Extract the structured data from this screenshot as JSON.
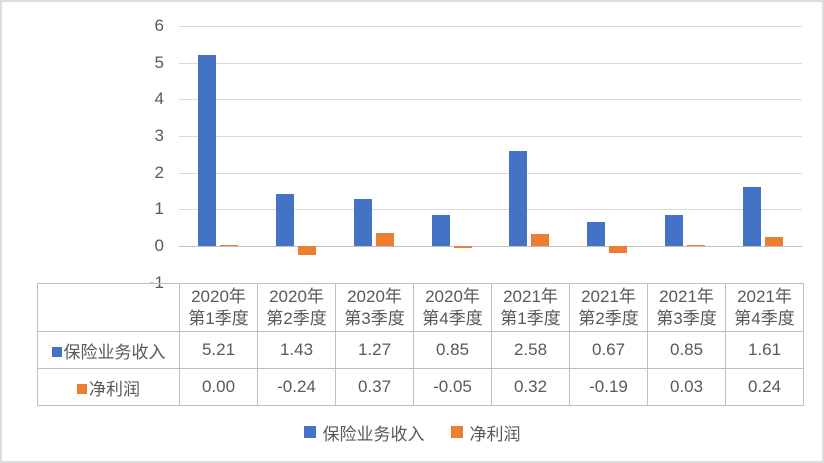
{
  "chart_data": {
    "type": "bar",
    "title": "",
    "xlabel": "",
    "ylabel": "",
    "categories": [
      {
        "line1": "2020年",
        "line2": "第1季度"
      },
      {
        "line1": "2020年",
        "line2": "第2季度"
      },
      {
        "line1": "2020年",
        "line2": "第3季度"
      },
      {
        "line1": "2020年",
        "line2": "第4季度"
      },
      {
        "line1": "2021年",
        "line2": "第1季度"
      },
      {
        "line1": "2021年",
        "line2": "第2季度"
      },
      {
        "line1": "2021年",
        "line2": "第3季度"
      },
      {
        "line1": "2021年",
        "line2": "第4季度"
      }
    ],
    "series": [
      {
        "name": "保险业务收入",
        "color": "#4472C4",
        "values": [
          5.21,
          1.43,
          1.27,
          0.85,
          2.58,
          0.67,
          0.85,
          1.61
        ]
      },
      {
        "name": "净利润",
        "color": "#ED7D31",
        "values": [
          0.0,
          -0.24,
          0.37,
          -0.05,
          0.32,
          -0.19,
          0.03,
          0.24
        ]
      }
    ],
    "yticks": [
      6,
      5,
      4,
      3,
      2,
      1,
      0,
      -1
    ],
    "ylim": [
      -1,
      6
    ],
    "grid": true,
    "legend_position": "bottom",
    "data_table_shown": true,
    "value_decimals": 2
  },
  "colors": {
    "series_blue": "#4472C4",
    "series_orange": "#ED7D31",
    "gridline": "#D9D9D9",
    "axis_line": "#BFBFBF",
    "table_border": "#BFBFBF",
    "text": "#595959",
    "frame_border": "#DCDCDC",
    "background": "#FFFFFF"
  }
}
